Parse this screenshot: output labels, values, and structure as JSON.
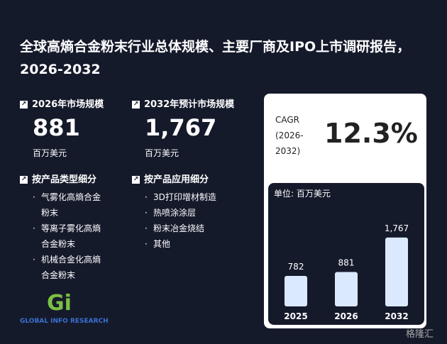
{
  "header": {
    "title": "全球高熵合金粉末行业总体规模、主要厂商及IPO上市调研报告，2026-2032"
  },
  "stats": [
    {
      "label": "2026年市场规模",
      "value": "881",
      "unit": "百万美元"
    },
    {
      "label": "2032年预计市场规模",
      "value": "1,767",
      "unit": "百万美元"
    }
  ],
  "segments": [
    {
      "title": "按产品类型细分",
      "items": [
        "气雾化高熵合金粉末",
        "等离子雾化高熵合金粉末",
        "机械合金化高熵合金粉末"
      ]
    },
    {
      "title": "按产品应用细分",
      "items": [
        "3D打印增材制造",
        "热喷涂涂层",
        "粉末冶金烧结",
        "其他"
      ]
    }
  ],
  "cagr": {
    "label": "CAGR (2026-2032)",
    "value": "12.3%"
  },
  "chart_data": {
    "type": "bar",
    "subtitle": "单位: 百万美元",
    "categories": [
      "2025",
      "2026",
      "2032"
    ],
    "values": [
      782,
      881,
      1767
    ],
    "value_labels": [
      "782",
      "881",
      "1,767"
    ],
    "color": "#dbe9ff"
  },
  "footer": {
    "logo": "Gi",
    "brand": "GLOBAL INFO RESEARCH",
    "watermark": "格隆汇"
  }
}
